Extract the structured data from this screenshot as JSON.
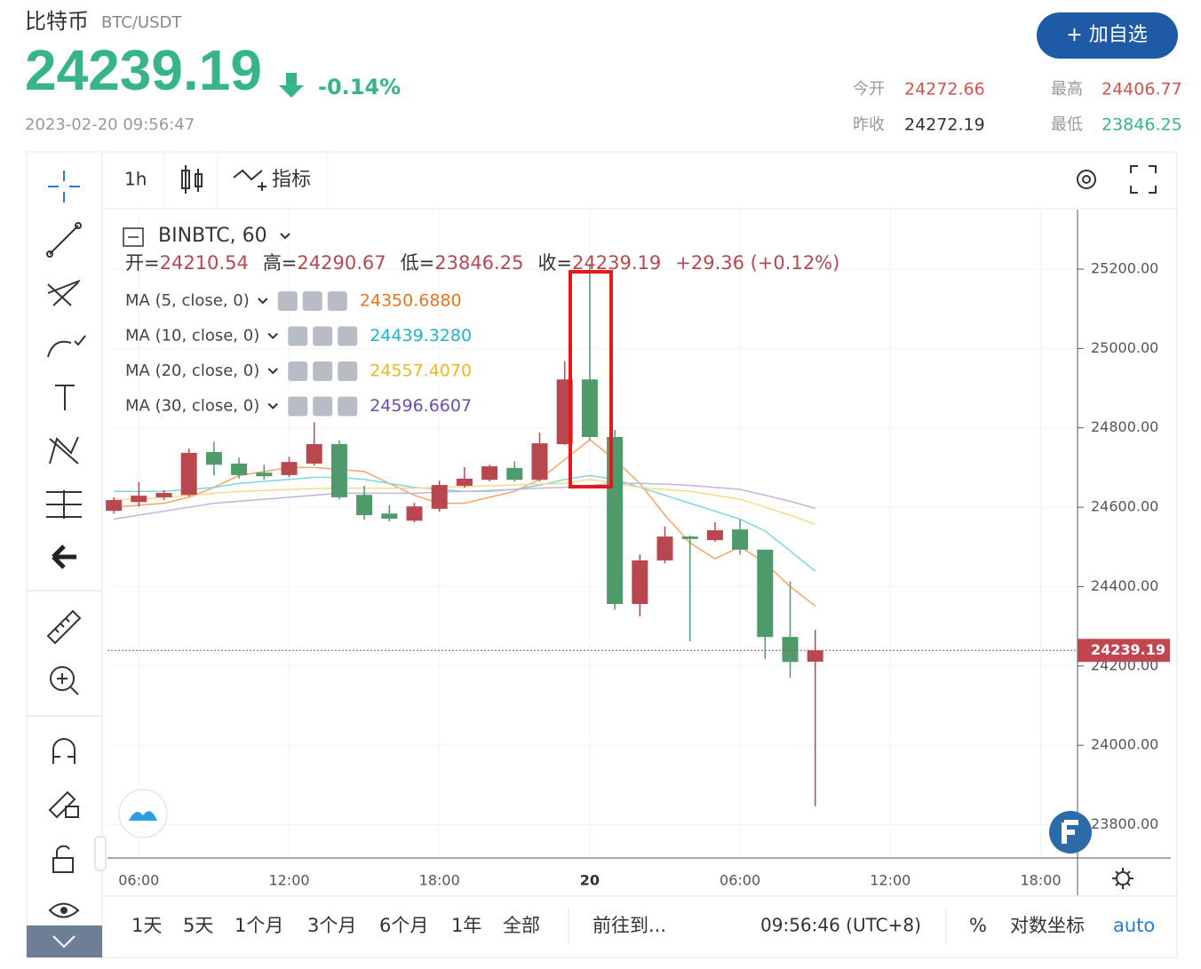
{
  "header": {
    "title": "比特币",
    "pair": "BTC/USDT",
    "price": "24239.19",
    "change": "-0.14%",
    "time": "2023-02-20 09:56:47",
    "button": "+ 加自选",
    "stats": [
      {
        "label": "今开",
        "value": "24272.66"
      },
      {
        "label": "最高",
        "value": "24406.77"
      },
      {
        "label": "昨收",
        "value": "24272.19"
      },
      {
        "label": "最低",
        "value": "23846.25"
      }
    ]
  },
  "toolbar": {
    "interval": "1h",
    "indicators": "指标"
  },
  "chart_data": {
    "type": "candlestick",
    "symbol": "BINBTC, 60",
    "info": [
      {
        "label": "开=",
        "value": "24210.54"
      },
      {
        "label": "高=",
        "value": "24290.67"
      },
      {
        "label": "低=",
        "value": "23846.25"
      },
      {
        "label": "收=",
        "value": "24239.19"
      },
      {
        "label": "",
        "value": "+29.36 (+0.12%)"
      }
    ],
    "categories": [
      null,
      "06:00",
      null,
      null,
      null,
      null,
      null,
      "12:00",
      null,
      null,
      null,
      null,
      null,
      "18:00",
      null,
      null,
      null,
      null,
      null,
      "20",
      null,
      null,
      null,
      null,
      null,
      "06:00",
      null,
      null,
      null,
      null,
      null,
      "12:00",
      null,
      null,
      null,
      null,
      null,
      "18:00",
      null
    ],
    "candles": {
      "up_color": "#b8474f",
      "down_color": "#4f9a6b",
      "open": [
        24591,
        24613,
        24625,
        24631,
        24739,
        24710,
        24687,
        24681,
        24710,
        24759,
        24631,
        24584,
        24566,
        24596,
        24654,
        24669,
        24699,
        24669,
        24759,
        24922,
        24777,
        24356,
        24466,
        24526,
        24517,
        24544,
        24493,
        24273,
        24210.54,
        null,
        null,
        null,
        null,
        null,
        null,
        null,
        null,
        null,
        null
      ],
      "high": [
        24625,
        24663,
        24643,
        24748,
        24765,
        24725,
        24707,
        24727,
        24814,
        24768,
        24654,
        24605,
        24611,
        24667,
        24701,
        24707,
        24716,
        24788,
        24968,
        25211,
        24795,
        24481,
        24551,
        24529,
        24562,
        24569,
        24493,
        24412,
        24290.67,
        null,
        null,
        null,
        null,
        null,
        null,
        null,
        null,
        null,
        null
      ],
      "low": [
        24584,
        24602,
        24618,
        24627,
        24680,
        24672,
        24669,
        24676,
        24705,
        24620,
        24569,
        24564,
        24562,
        24589,
        24649,
        24665,
        24665,
        24665,
        24757,
        24770,
        24342,
        24325,
        24459,
        24262,
        24513,
        24480,
        24218,
        24170,
        23846.25,
        null,
        null,
        null,
        null,
        null,
        null,
        null,
        null,
        null,
        null
      ],
      "close": [
        24618,
        24629,
        24636,
        24737,
        24707,
        24681,
        24678,
        24714,
        24759,
        24625,
        24580,
        24571,
        24602,
        24656,
        24672,
        24703,
        24669,
        24761,
        24922,
        24777,
        24356,
        24466,
        24526,
        24520,
        24542,
        24493,
        24273,
        24210,
        24239.19,
        null,
        null,
        null,
        null,
        null,
        null,
        null,
        null,
        null,
        null
      ]
    },
    "series": [
      {
        "name": "MA (5, close, 0)",
        "legend_value": "24350.6880",
        "color": "#f5a56a",
        "label_color": "#e8741e",
        "values": [
          24600,
          24605,
          24610,
          24625,
          24650,
          24680,
          24690,
          24700,
          24700,
          24695,
          24690,
          24660,
          24630,
          24610,
          24610,
          24625,
          24640,
          24670,
          24720,
          24770,
          24720,
          24660,
          24580,
          24510,
          24470,
          24500,
          24460,
          24400,
          24351,
          null,
          null,
          null,
          null,
          null,
          null,
          null,
          null,
          null,
          null
        ]
      },
      {
        "name": "MA (10, close, 0)",
        "legend_value": "24439.3280",
        "color": "#7fd6e0",
        "label_color": "#1fb5c8",
        "values": [
          24640,
          24640,
          24640,
          24645,
          24650,
          24660,
          24665,
          24670,
          24675,
          24675,
          24670,
          24660,
          24650,
          24645,
          24640,
          24640,
          24645,
          24655,
          24670,
          24680,
          24670,
          24650,
          24630,
          24610,
          24590,
          24570,
          24540,
          24490,
          24439,
          null,
          null,
          null,
          null,
          null,
          null,
          null,
          null,
          null,
          null
        ]
      },
      {
        "name": "MA (20, close, 0)",
        "legend_value": "24557.4070",
        "color": "#f6d98a",
        "label_color": "#e9b824",
        "values": [
          24620,
          24620,
          24625,
          24630,
          24635,
          24640,
          24642,
          24645,
          24647,
          24648,
          24648,
          24648,
          24648,
          24650,
          24652,
          24654,
          24656,
          24658,
          24660,
          24670,
          24660,
          24650,
          24645,
          24640,
          24630,
          24620,
          24600,
          24580,
          24557,
          null,
          null,
          null,
          null,
          null,
          null,
          null,
          null,
          null,
          null
        ]
      },
      {
        "name": "MA (30, close, 0)",
        "legend_value": "24596.6607",
        "color": "#c5b3dd",
        "label_color": "#6a4ea8",
        "values": [
          24570,
          24580,
          24590,
          24600,
          24610,
          24615,
          24620,
          24625,
          24630,
          24635,
          24635,
          24635,
          24635,
          24638,
          24640,
          24642,
          24645,
          24648,
          24650,
          24655,
          24660,
          24660,
          24658,
          24655,
          24650,
          24645,
          24630,
          24615,
          24597,
          null,
          null,
          null,
          null,
          null,
          null,
          null,
          null,
          null,
          null
        ]
      }
    ],
    "current_price": 24239.19,
    "current_color": "#c0474f",
    "ylim": [
      23716,
      25350
    ],
    "yticks": [
      {
        "value": 23800,
        "label": "23800.00"
      },
      {
        "value": 24000,
        "label": "24000.00"
      },
      {
        "value": 24200,
        "label": "24200.00"
      },
      {
        "value": 24400,
        "label": "24400.00"
      },
      {
        "value": 24600,
        "label": "24600.00"
      },
      {
        "value": 24800,
        "label": "24800.00"
      },
      {
        "value": 25000,
        "label": "25000.00"
      },
      {
        "value": 25200,
        "label": "25200.00"
      }
    ],
    "grid": true
  },
  "bottom_bar": {
    "ranges": [
      "1天",
      "5天",
      "1个月",
      "3个月",
      "6个月",
      "1年",
      "全部"
    ],
    "goto": "前往到...",
    "clock": "09:56:46 (UTC+8)",
    "percent": "%",
    "log": "对数坐标",
    "auto": "auto"
  }
}
